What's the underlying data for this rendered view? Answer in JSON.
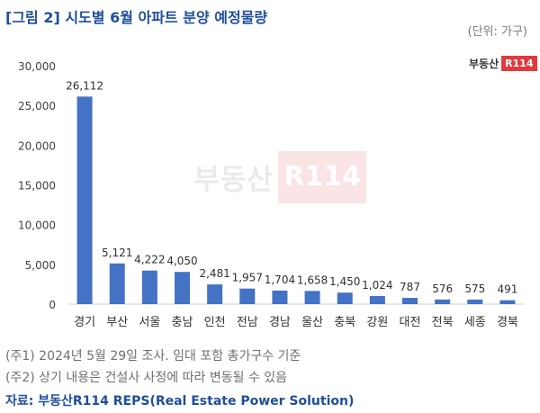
{
  "title": "[그림 2] 시도별 6월 아파트 분양 예정물량",
  "unit": "(단위: 가구)",
  "logo": {
    "text": "부동산",
    "mark": "R114"
  },
  "watermark": {
    "text": "부동산",
    "mark": "R114"
  },
  "notes": [
    "(주1) 2024년 5월 29일 조사. 임대 포함 총가구수 기준",
    "(주2) 상기 내용은 건설사 사정에 따라 변동될 수 있음"
  ],
  "source": "자료: 부동산R114 REPS(Real Estate Power Solution)",
  "colors": {
    "title": "#1f4e9a",
    "bar": "#4472c4",
    "logo": "#e03a3e"
  },
  "chart_data": {
    "type": "bar",
    "title": "",
    "xlabel": "",
    "ylabel": "",
    "categories": [
      "경기",
      "부산",
      "서울",
      "충남",
      "인천",
      "전남",
      "경남",
      "울산",
      "충북",
      "강원",
      "대전",
      "전북",
      "세종",
      "경북"
    ],
    "values": [
      26112,
      5121,
      4222,
      4050,
      2481,
      1957,
      1704,
      1658,
      1450,
      1024,
      787,
      576,
      575,
      491
    ],
    "value_labels": [
      "26,112",
      "5,121",
      "4,222",
      "4,050",
      "2,481",
      "1,957",
      "1,704",
      "1,658",
      "1,450",
      "1,024",
      "787",
      "576",
      "575",
      "491"
    ],
    "ylim": [
      0,
      30000
    ],
    "yticks": [
      0,
      5000,
      10000,
      15000,
      20000,
      25000,
      30000
    ],
    "ytick_labels": [
      "0",
      "5,000",
      "10,000",
      "15,000",
      "20,000",
      "25,000",
      "30,000"
    ],
    "grid": false,
    "legend": "none"
  }
}
